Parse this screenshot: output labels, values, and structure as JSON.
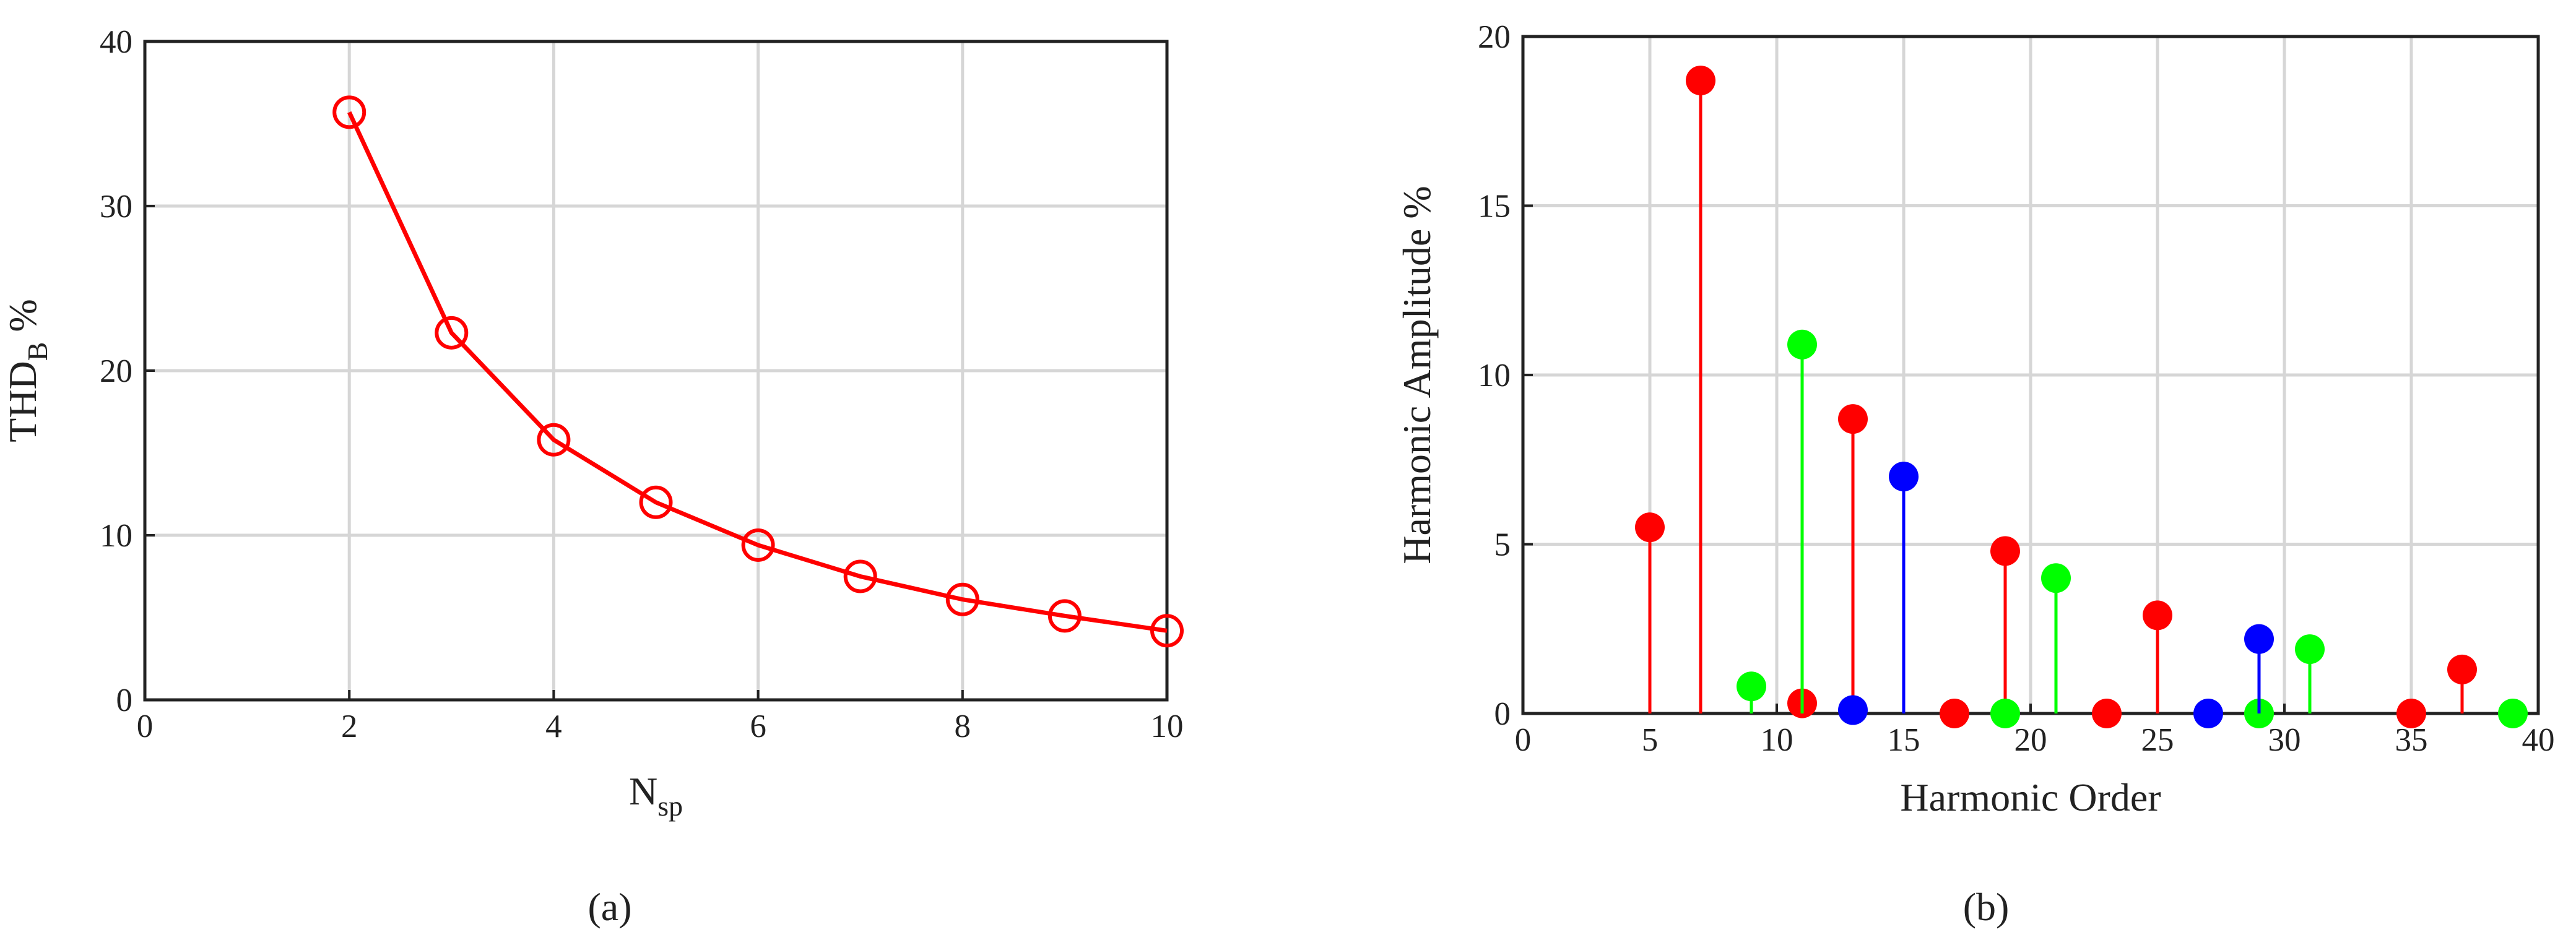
{
  "chart_data": [
    {
      "type": "line",
      "caption": "(a)",
      "x_label": [
        "N",
        "sp"
      ],
      "y_label": [
        "THD",
        "B",
        " %"
      ],
      "x": [
        2,
        3,
        4,
        5,
        6,
        7,
        8,
        9,
        10
      ],
      "series": [
        {
          "color": "#ff0000",
          "values": [
            35.7,
            22.3,
            15.8,
            12.0,
            9.4,
            7.5,
            6.1,
            5.1,
            4.2
          ]
        }
      ],
      "xlim": [
        0,
        10
      ],
      "ylim": [
        0,
        40
      ],
      "xticks": [
        0,
        2,
        4,
        6,
        8,
        10
      ],
      "yticks": [
        0,
        10,
        20,
        30,
        40
      ],
      "grid": true,
      "marker": "open-circle"
    },
    {
      "type": "stem",
      "caption": "(b)",
      "x_label": [
        "Harmonic Order"
      ],
      "y_label": [
        "Harmonic Amplitude %"
      ],
      "series": [
        {
          "color": "#ff0000",
          "x": [
            5,
            7,
            11,
            13,
            17,
            19,
            23,
            25,
            35,
            37
          ],
          "values": [
            5.5,
            18.7,
            0.3,
            8.7,
            0,
            4.8,
            0,
            2.9,
            0,
            1.3
          ]
        },
        {
          "color": "#00ff00",
          "x": [
            9,
            11,
            19,
            21,
            29,
            31,
            39
          ],
          "values": [
            0.8,
            10.9,
            0,
            4.0,
            0,
            1.9,
            0
          ]
        },
        {
          "color": "#0000ff",
          "x": [
            13,
            15,
            27,
            29
          ],
          "values": [
            0.1,
            7.0,
            0,
            2.2
          ]
        }
      ],
      "xlim": [
        0,
        40
      ],
      "ylim": [
        0,
        20
      ],
      "xticks": [
        0,
        5,
        10,
        15,
        20,
        25,
        30,
        35,
        40
      ],
      "yticks": [
        0,
        5,
        10,
        15,
        20
      ],
      "grid": true,
      "marker": "filled-circle"
    }
  ]
}
